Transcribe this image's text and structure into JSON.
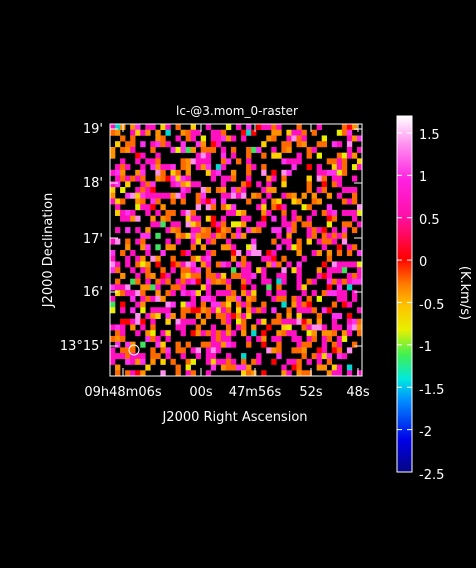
{
  "chart_data": {
    "type": "heatmap",
    "title": "lc-@3.mom_0-raster",
    "xlabel": "J2000 Right Ascension",
    "ylabel": "J2000 Declination",
    "x_tick_labels": [
      "09h48m06s",
      "00s",
      "47m56s",
      "52s",
      "48s"
    ],
    "y_tick_labels": [
      "13°15'",
      "16'",
      "17'",
      "18'",
      "19'"
    ],
    "colorbar": {
      "label": "(K.km/s)",
      "ticks": [
        "1.5",
        "1",
        "0.5",
        "0",
        "-0.5",
        "-1",
        "-1.5",
        "-2",
        "-2.5"
      ],
      "range": [
        -2.5,
        1.7
      ]
    },
    "grid": false,
    "legend": "none",
    "pixel_grid": {
      "columns": 50,
      "rows": 44,
      "blank_fraction": 0.5
    },
    "value_distribution": "mostly between -0.9 and 1.2 K.km/s, rare pixels near -1.5 (cyan/green)",
    "beam_marker": "circle, lower-left corner"
  }
}
